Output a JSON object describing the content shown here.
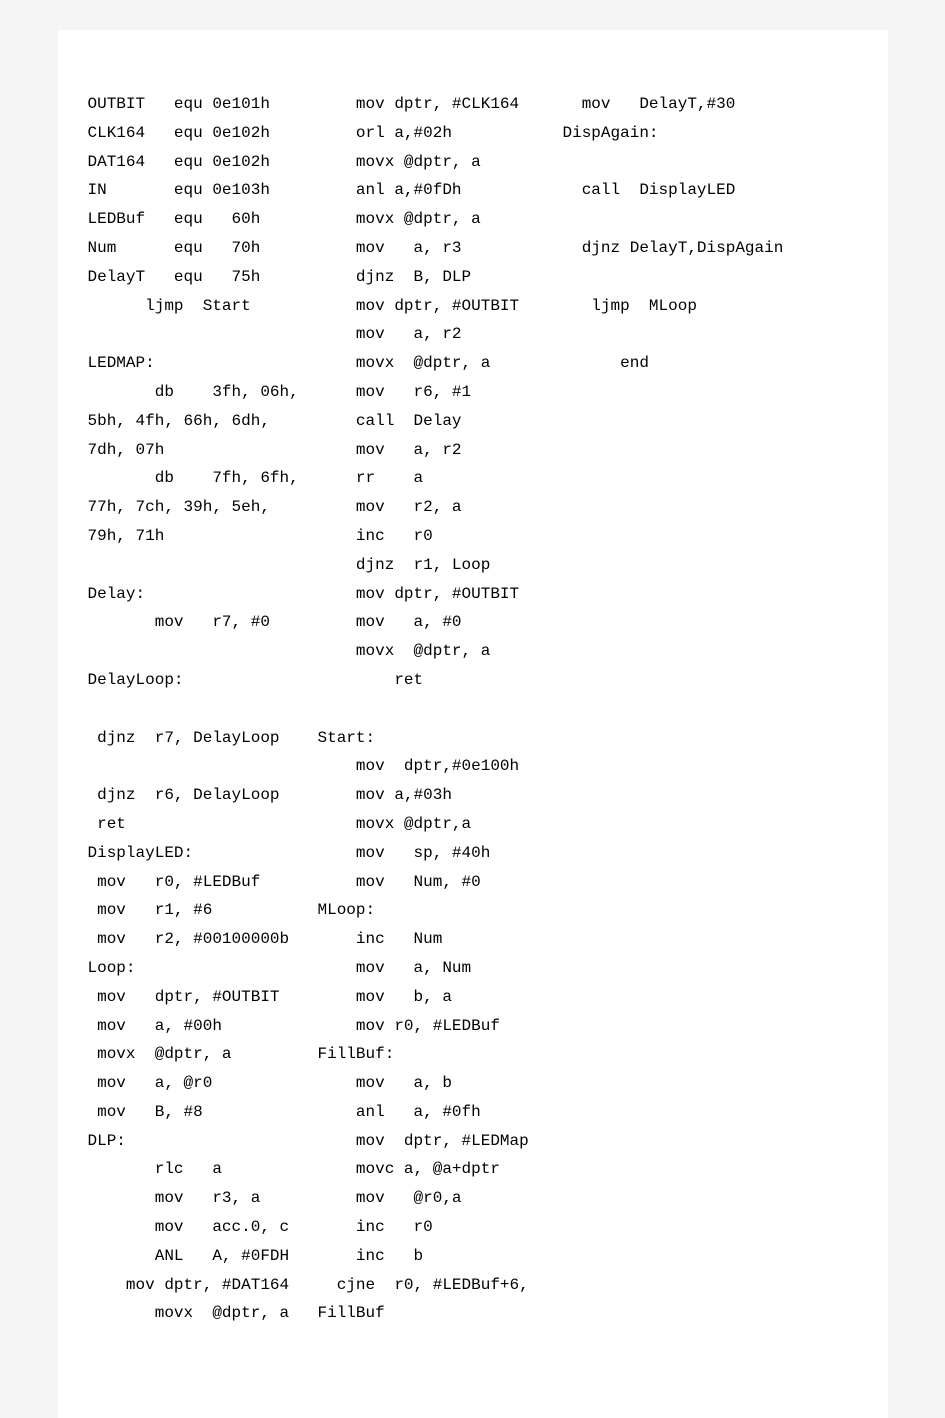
{
  "background_color": "#f5f5f5",
  "page_color": "#ffffff",
  "text_color": "#000000",
  "font_family": "SimSun",
  "font_size": 16,
  "line_height": 1.8,
  "column_count": 3,
  "col1": {
    "lines": [
      "OUTBIT   equ 0e101h",
      "CLK164   equ 0e102h",
      "DAT164   equ 0e102h",
      "IN       equ 0e103h",
      "LEDBuf   equ   60h",
      "Num      equ   70h",
      "DelayT   equ   75h",
      "      ljmp  Start",
      "",
      "LEDMAP:",
      "       db    3fh, 06h,",
      "5bh, 4fh, 66h, 6dh,",
      "7dh, 07h",
      "       db    7fh, 6fh,",
      "77h, 7ch, 39h, 5eh,",
      "79h, 71h",
      "",
      "Delay:",
      "       mov   r7, #0",
      "",
      "DelayLoop:",
      "",
      " djnz  r7, DelayLoop",
      "",
      " djnz  r6, DelayLoop",
      " ret",
      "DisplayLED:",
      " mov   r0, #LEDBuf",
      " mov   r1, #6",
      " mov   r2, #00100000b",
      "Loop:",
      " mov   dptr, #OUTBIT",
      " mov   a, #00h",
      " movx  @dptr, a",
      " mov   a, @r0",
      " mov   B, #8",
      "DLP:",
      "       rlc   a",
      "       mov   r3, a",
      "       mov   acc.0, c",
      "       ANL   A, #0FDH",
      "    mov dptr, #DAT164",
      "       movx  @dptr, a"
    ]
  },
  "col2": {
    "lines": [
      "    mov dptr, #CLK164",
      "    orl a,#02h",
      "    movx @dptr, a",
      "    anl a,#0fDh",
      "    movx @dptr, a",
      "    mov   a, r3",
      "    djnz  B, DLP",
      "    mov dptr, #OUTBIT",
      "    mov   a, r2",
      "    movx  @dptr, a",
      "    mov   r6, #1",
      "    call  Delay",
      "    mov   a, r2",
      "    rr    a",
      "    mov   r2, a",
      "    inc   r0",
      "    djnz  r1, Loop",
      "    mov dptr, #OUTBIT",
      "    mov   a, #0",
      "    movx  @dptr, a",
      "        ret",
      "",
      "Start:",
      "    mov  dptr,#0e100h",
      "    mov a,#03h",
      "    movx @dptr,a",
      "    mov   sp, #40h",
      "    mov   Num, #0",
      "MLoop:",
      "    inc   Num",
      "    mov   a, Num",
      "    mov   b, a",
      "    mov r0, #LEDBuf",
      "FillBuf:",
      "    mov   a, b",
      "    anl   a, #0fh",
      "    mov  dptr, #LEDMap",
      "    movc a, @a+dptr",
      "    mov   @r0,a",
      "    inc   r0",
      "    inc   b",
      "  cjne  r0, #LEDBuf+6,",
      "FillBuf"
    ]
  },
  "col3": {
    "lines": [
      "  mov   DelayT,#30",
      "DispAgain:",
      "",
      "  call  DisplayLED",
      "",
      "  djnz DelayT,DispAgain",
      "",
      "   ljmp  MLoop",
      "",
      "      end"
    ]
  }
}
